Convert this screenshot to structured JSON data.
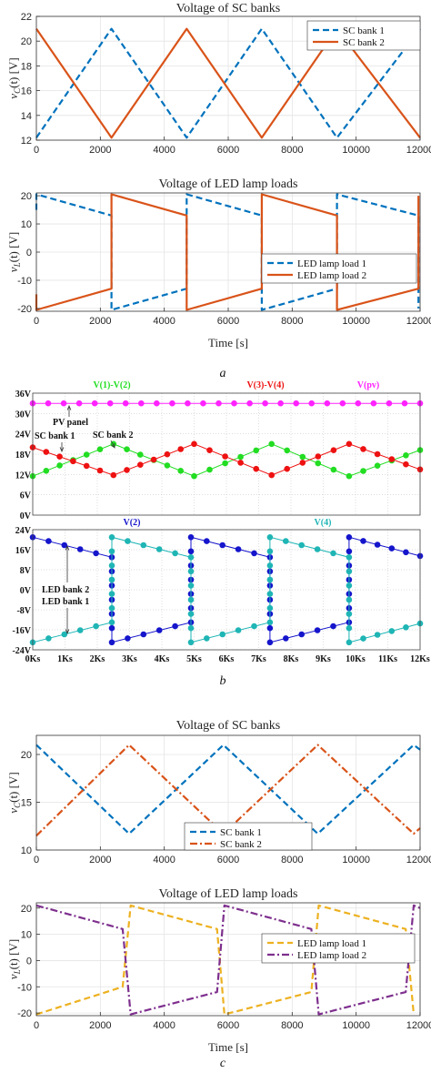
{
  "panel_labels": [
    "a",
    "b",
    "c"
  ],
  "colors": {
    "blue": "#0072BD",
    "orange": "#D95319",
    "yellow": "#EDB120",
    "purple": "#7E2F8E",
    "sim_green": "#22dd22",
    "sim_red": "#ee1111",
    "sim_magenta": "#ff22ff",
    "sim_blue": "#1515cc",
    "sim_cyan": "#1fb5b5"
  },
  "chart_data": [
    {
      "id": "a-top",
      "type": "line",
      "title": "Voltage of SC banks",
      "ylabel": "v_C(t) [V]",
      "ylabel_parts": [
        "v",
        "C",
        "(t) [V]"
      ],
      "xlabel": "",
      "xlim": [
        0,
        12000
      ],
      "ylim": [
        12,
        22
      ],
      "grid": true,
      "legend_position": "top-right",
      "xticks": [
        0,
        2000,
        4000,
        6000,
        8000,
        10000,
        12000
      ],
      "xtick_labels": [
        "0",
        "2000",
        "4000",
        "6000",
        "8000",
        "10000",
        "12000"
      ],
      "yticks": [
        12,
        14,
        16,
        18,
        20,
        22
      ],
      "ytick_labels": [
        "12",
        "14",
        "16",
        "18",
        "20",
        "22"
      ],
      "series": [
        {
          "name": "SC bank 1",
          "style": "dashed",
          "color": "#0072BD",
          "x": [
            0,
            2350,
            4700,
            7050,
            9400,
            12000
          ],
          "y": [
            12.2,
            21,
            12.2,
            21,
            12.2,
            21
          ]
        },
        {
          "name": "SC bank 2",
          "style": "solid",
          "color": "#D95319",
          "x": [
            0,
            2350,
            4700,
            7050,
            9400,
            12000
          ],
          "y": [
            21,
            12.2,
            21,
            12.2,
            21,
            12.2
          ]
        }
      ]
    },
    {
      "id": "a-bottom",
      "type": "line",
      "title": "Voltage of LED lamp loads",
      "ylabel": "v_L(t) [V]",
      "ylabel_parts": [
        "v",
        "L",
        "(t) [V]"
      ],
      "xlabel": "Time [s]",
      "xlim": [
        0,
        12000
      ],
      "ylim": [
        -21,
        21
      ],
      "grid": true,
      "legend_position": "center-right",
      "xticks": [
        0,
        2000,
        4000,
        6000,
        8000,
        10000,
        12000
      ],
      "xtick_labels": [
        "0",
        "2000",
        "4000",
        "6000",
        "8000",
        "10000",
        "12000"
      ],
      "yticks": [
        -20,
        -10,
        0,
        10,
        20
      ],
      "ytick_labels": [
        "-20",
        "-10",
        "0",
        "10",
        "20"
      ],
      "series": [
        {
          "name": "LED lamp load 1",
          "style": "dashed",
          "color": "#0072BD",
          "x": [
            0,
            0,
            2350,
            2350,
            4700,
            4700,
            7050,
            7050,
            9400,
            9400,
            11950,
            11950
          ],
          "y": [
            15,
            20.5,
            13,
            -20.5,
            -13,
            20.5,
            13,
            -20.5,
            -13,
            20.5,
            13,
            -20
          ]
        },
        {
          "name": "LED lamp load 2",
          "style": "solid",
          "color": "#D95319",
          "x": [
            0,
            0,
            2350,
            2350,
            4700,
            4700,
            7050,
            7050,
            9400,
            9400,
            11950,
            11950
          ],
          "y": [
            -15,
            -20.5,
            -13,
            20.5,
            13,
            -20.5,
            -13,
            20.5,
            13,
            -20.5,
            -13,
            20
          ]
        }
      ]
    },
    {
      "id": "b-top",
      "type": "line",
      "title": "",
      "xlim": [
        0,
        12
      ],
      "ylim": [
        0,
        36
      ],
      "grid": true,
      "yticks": [
        0,
        6,
        12,
        18,
        24,
        30,
        36
      ],
      "ytick_labels": [
        "0V",
        "6V",
        "12V",
        "18V",
        "24V",
        "30V",
        "36V"
      ],
      "series_labels": [
        "V(1)-V(2)",
        "V(3)-V(4)",
        "V(pv)"
      ],
      "annotations": [
        "PV panel",
        "SC bank 1",
        "SC bank 2"
      ],
      "series": [
        {
          "name": "V(1)-V(2)",
          "color": "#22dd22",
          "x": [
            0,
            2.5,
            5,
            7.4,
            9.8,
            12
          ],
          "y": [
            11.5,
            21,
            11.5,
            21,
            11.5,
            19.2
          ]
        },
        {
          "name": "V(3)-V(4)",
          "color": "#ee1111",
          "x": [
            0,
            2.5,
            5,
            7.4,
            9.8,
            12
          ],
          "y": [
            20,
            11.8,
            21,
            11.8,
            21,
            13.5
          ]
        },
        {
          "name": "V(pv)",
          "color": "#ff22ff",
          "x": [
            0,
            12
          ],
          "y": [
            33,
            33
          ]
        }
      ]
    },
    {
      "id": "b-bottom",
      "type": "line",
      "title": "",
      "xlim": [
        0,
        12
      ],
      "ylim": [
        -24,
        24
      ],
      "grid": true,
      "xticks": [
        0,
        1,
        2,
        3,
        4,
        5,
        6,
        7,
        8,
        9,
        10,
        11,
        12
      ],
      "xtick_labels": [
        "0Ks",
        "1Ks",
        "2Ks",
        "3Ks",
        "4Ks",
        "5Ks",
        "6Ks",
        "7Ks",
        "8Ks",
        "9Ks",
        "10Ks",
        "11Ks",
        "12Ks"
      ],
      "yticks": [
        -24,
        -16,
        -8,
        0,
        8,
        16,
        24
      ],
      "ytick_labels": [
        "-24V",
        "-16V",
        "-8V",
        "0V",
        "8V",
        "16V",
        "24V"
      ],
      "series_labels": [
        "V(2)",
        "V(4)"
      ],
      "annotations": [
        "LED bank 2",
        "LED bank 1"
      ],
      "series": [
        {
          "name": "V(2)",
          "color": "#1515cc",
          "x": [
            0,
            2.45,
            2.45,
            4.9,
            4.9,
            7.35,
            7.35,
            9.8,
            9.8,
            12
          ],
          "y": [
            21,
            13,
            -21,
            -13,
            21,
            13,
            -21,
            -13,
            21,
            13.5
          ]
        },
        {
          "name": "V(4)",
          "color": "#1fb5b5",
          "x": [
            0,
            2.45,
            2.45,
            4.9,
            4.9,
            7.35,
            7.35,
            9.8,
            9.8,
            12
          ],
          "y": [
            -21,
            -13,
            21,
            13,
            -21,
            -13,
            21,
            13,
            -21,
            -13.5
          ]
        }
      ]
    },
    {
      "id": "c-top",
      "type": "line",
      "title": "Voltage of SC banks",
      "ylabel": "v_C(t) [V]",
      "ylabel_parts": [
        "v",
        "C",
        "(t) [V]"
      ],
      "xlabel": "",
      "xlim": [
        0,
        12000
      ],
      "ylim": [
        10,
        22
      ],
      "grid": true,
      "legend_position": "bottom-center",
      "xticks": [
        0,
        2000,
        4000,
        6000,
        8000,
        10000,
        12000
      ],
      "xtick_labels": [
        "0",
        "2000",
        "4000",
        "6000",
        "8000",
        "10000",
        "12000"
      ],
      "yticks": [
        10,
        15,
        20
      ],
      "ytick_labels": [
        "10",
        "15",
        "20"
      ],
      "series": [
        {
          "name": "SC bank 1",
          "style": "dashed",
          "color": "#0072BD",
          "x": [
            0,
            2900,
            5850,
            8800,
            11800,
            12000
          ],
          "y": [
            21,
            11.7,
            21,
            11.7,
            21,
            20.5
          ]
        },
        {
          "name": "SC bank 2",
          "style": "dashdot",
          "color": "#D95319",
          "x": [
            0,
            2900,
            5850,
            8800,
            11800,
            12000
          ],
          "y": [
            11.5,
            21,
            11.7,
            21,
            11.7,
            12.3
          ]
        }
      ]
    },
    {
      "id": "c-bottom",
      "type": "line",
      "title": "Voltage of LED lamp loads",
      "ylabel": "v_L(t) [V]",
      "ylabel_parts": [
        "v",
        "L",
        "(t) [V]"
      ],
      "xlabel": "Time [s]",
      "xlim": [
        0,
        12000
      ],
      "ylim": [
        -21,
        22
      ],
      "grid": true,
      "legend_position": "center-right",
      "xticks": [
        0,
        2000,
        4000,
        6000,
        8000,
        10000,
        12000
      ],
      "xtick_labels": [
        "0",
        "2000",
        "4000",
        "6000",
        "8000",
        "10000",
        "12000"
      ],
      "yticks": [
        -20,
        -10,
        0,
        10,
        20
      ],
      "ytick_labels": [
        "-20",
        "-10",
        "0",
        "10",
        "20"
      ],
      "series": [
        {
          "name": "LED lamp load 1",
          "style": "dashed",
          "color": "#EDB120",
          "x": [
            0,
            2700,
            2950,
            5650,
            5880,
            8600,
            8830,
            11550,
            11800
          ],
          "y": [
            -20.5,
            -10,
            21,
            12,
            -20.5,
            -12,
            21,
            12,
            -20.5
          ]
        },
        {
          "name": "LED lamp load 2",
          "style": "dashdot",
          "color": "#7E2F8E",
          "x": [
            0,
            2700,
            2950,
            5650,
            5880,
            8600,
            8830,
            11550,
            11800,
            12000
          ],
          "y": [
            21,
            12,
            -20.5,
            -12,
            21,
            12,
            -20.5,
            -12,
            21,
            20
          ]
        }
      ]
    }
  ]
}
